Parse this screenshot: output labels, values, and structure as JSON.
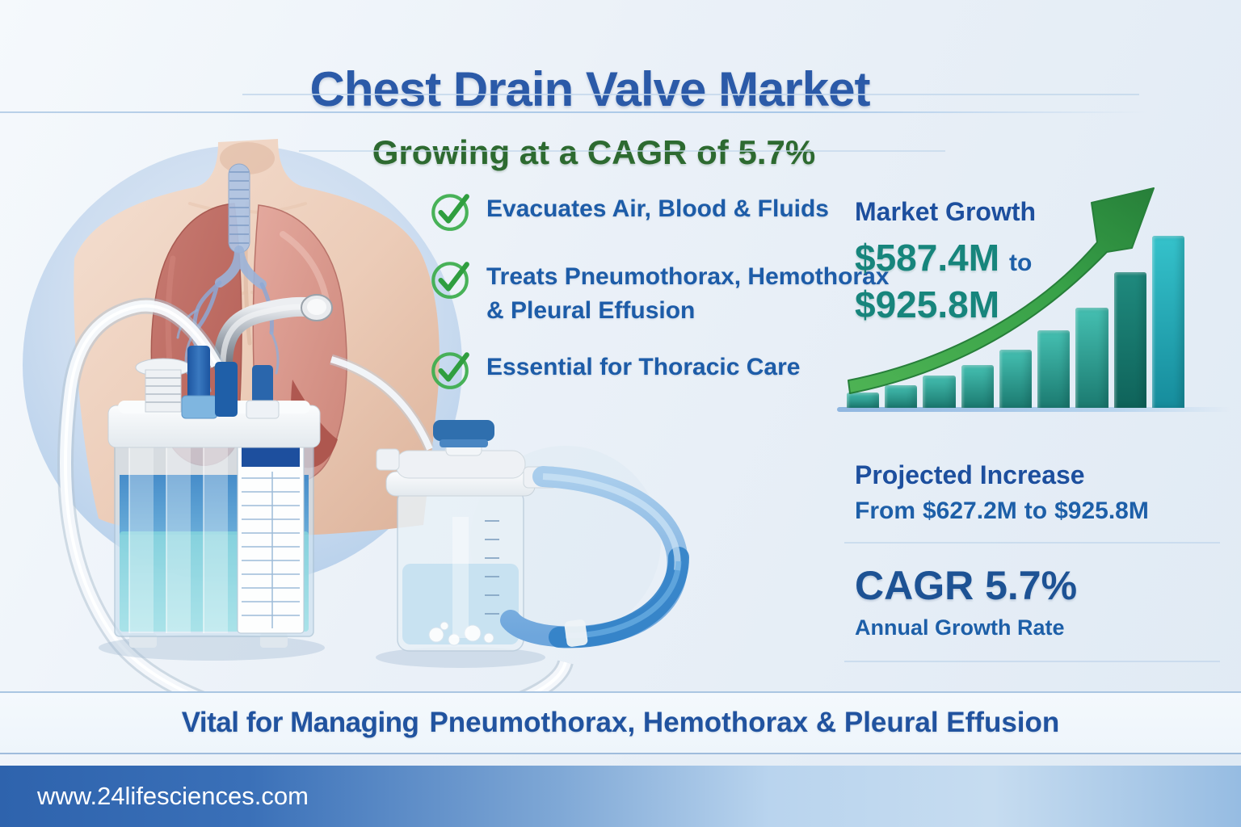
{
  "poster": {
    "title": "Chest Drain Valve Market",
    "subtitle": "Growing at a CAGR of 5.7%"
  },
  "features": {
    "items": [
      {
        "icon": "check-circle",
        "label": "Evacuates Air, Blood & Fluids"
      },
      {
        "icon": "check-circle",
        "label": "Treats Pneumothorax, Hemothorax & Pleural Effusion"
      },
      {
        "icon": "check-circle",
        "label": "Essential for Thoracic Care"
      }
    ]
  },
  "market_growth": {
    "heading": "Market Growth",
    "from_value": "$587.4M",
    "connector": "to",
    "to_value": "$925.8M"
  },
  "projected_increase": {
    "heading": "Projected Increase",
    "prefix": "From",
    "from_value": "$627.2M",
    "connector": "to",
    "to_value": "$925.8M"
  },
  "cagr": {
    "headline": "CAGR 5.7%",
    "sublabel": "Annual Growth Rate"
  },
  "bottom_banner": {
    "lead": "Vital for Managing",
    "emphasis": "Pneumothorax, Hemothorax & Pleural Effusion"
  },
  "footer": {
    "website": "www.24lifesciences.com"
  },
  "colors": {
    "title_blue": "#2b5aa8",
    "subtitle_green": "#2d6a30",
    "body_text_blue": "#1d5ca8",
    "check_green": "#3fae4f",
    "money_teal": "#17857c",
    "bar_teal": "#2aa89c",
    "arrow_green": "#2f9e3f",
    "footer_bar_blue": "#2f66b0"
  },
  "chart_data": {
    "type": "bar",
    "title": "Market Growth",
    "annotation_from": "$587.4M",
    "annotation_to": "$925.8M",
    "categories": [
      "",
      "",
      "",
      "",
      "",
      "",
      "",
      "",
      ""
    ],
    "values": [
      9,
      13,
      19,
      25,
      34,
      45,
      58,
      79,
      100
    ],
    "value_unit": "relative bar height % (no axis labels shown in image)",
    "bar_shades": [
      "teal",
      "teal",
      "teal",
      "teal",
      "teal",
      "teal",
      "teal",
      "dark",
      "cyan"
    ],
    "trend_arrow": "up",
    "grid": false,
    "xlabel": "",
    "ylabel": "",
    "legend": false
  }
}
